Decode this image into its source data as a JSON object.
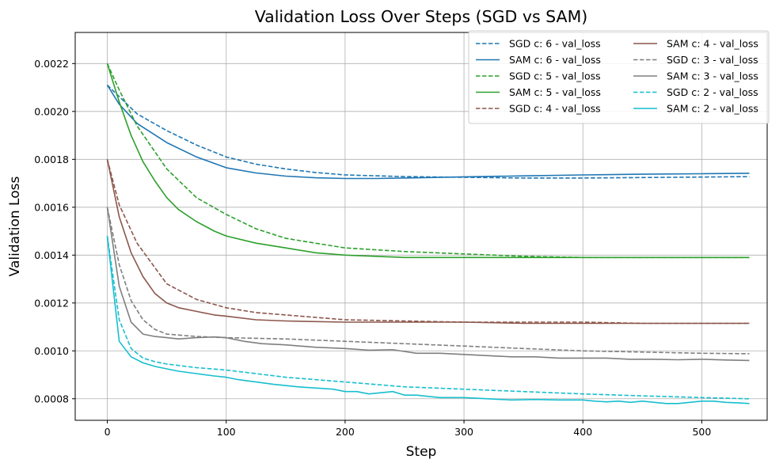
{
  "chart_data": {
    "type": "line",
    "title": "Validation Loss Over Steps (SGD vs SAM)",
    "xlabel": "Step",
    "ylabel": "Validation Loss",
    "xlim": [
      -27,
      555
    ],
    "ylim": [
      0.00071,
      0.00233
    ],
    "xticks": [
      0,
      100,
      200,
      300,
      400,
      500
    ],
    "yticks": [
      0.0008,
      0.001,
      0.0012,
      0.0014,
      0.0016,
      0.0018,
      0.002,
      0.0022
    ],
    "xtick_labels": [
      "0",
      "100",
      "200",
      "300",
      "400",
      "500"
    ],
    "ytick_labels": [
      "0.0008",
      "0.0010",
      "0.0012",
      "0.0014",
      "0.0016",
      "0.0018",
      "0.0020",
      "0.0022"
    ],
    "grid": true,
    "legend_position": "top-right",
    "legend_columns": 2,
    "series": [
      {
        "name": "SGD c: 6 - val_loss",
        "color": "#1f77b4",
        "style": "dashed",
        "x": [
          0,
          25,
          50,
          75,
          100,
          125,
          150,
          175,
          200,
          250,
          300,
          350,
          400,
          450,
          500,
          540
        ],
        "y": [
          0.00211,
          0.00199,
          0.00192,
          0.00186,
          0.00181,
          0.00178,
          0.00176,
          0.001745,
          0.001735,
          0.001728,
          0.001725,
          0.001722,
          0.001722,
          0.001724,
          0.001726,
          0.001728
        ]
      },
      {
        "name": "SAM c: 6 - val_loss",
        "color": "#1f77b4",
        "style": "solid",
        "x": [
          0,
          10,
          25,
          50,
          75,
          100,
          125,
          150,
          175,
          200,
          225,
          250,
          300,
          350,
          400,
          450,
          500,
          540
        ],
        "y": [
          0.00211,
          0.00203,
          0.00195,
          0.00187,
          0.00181,
          0.001765,
          0.001743,
          0.00173,
          0.001723,
          0.00172,
          0.00172,
          0.001722,
          0.001727,
          0.001731,
          0.001735,
          0.001738,
          0.00174,
          0.001742
        ]
      },
      {
        "name": "SGD c: 5 - val_loss",
        "color": "#2ca02c",
        "style": "dashed",
        "x": [
          0,
          10,
          25,
          50,
          75,
          100,
          125,
          150,
          175,
          200,
          250,
          300,
          350,
          400,
          450,
          500,
          540
        ],
        "y": [
          0.0022,
          0.00209,
          0.00194,
          0.00176,
          0.00164,
          0.00157,
          0.00151,
          0.00147,
          0.00145,
          0.00143,
          0.001415,
          0.001405,
          0.001395,
          0.00139,
          0.00139,
          0.00139,
          0.00139
        ]
      },
      {
        "name": "SAM c: 5 - val_loss",
        "color": "#2ca02c",
        "style": "solid",
        "x": [
          0,
          10,
          20,
          30,
          40,
          50,
          60,
          75,
          90,
          100,
          125,
          150,
          175,
          200,
          250,
          300,
          350,
          400,
          450,
          500,
          540
        ],
        "y": [
          0.0022,
          0.00204,
          0.0019,
          0.00179,
          0.00171,
          0.00164,
          0.00159,
          0.00154,
          0.0015,
          0.00148,
          0.00145,
          0.00143,
          0.00141,
          0.0014,
          0.00139,
          0.00139,
          0.00139,
          0.00139,
          0.00139,
          0.00139,
          0.00139
        ]
      },
      {
        "name": "SGD c: 4 - val_loss",
        "color": "#8c564b",
        "style": "dashed",
        "x": [
          0,
          10,
          25,
          50,
          75,
          100,
          125,
          150,
          200,
          250,
          300,
          350,
          400,
          450,
          500,
          540
        ],
        "y": [
          0.0018,
          0.00161,
          0.00145,
          0.00128,
          0.001215,
          0.00118,
          0.00116,
          0.00115,
          0.00113,
          0.001125,
          0.00112,
          0.00112,
          0.00112,
          0.001115,
          0.001115,
          0.001115
        ]
      },
      {
        "name": "SAM c: 4 - val_loss",
        "color": "#8c564b",
        "style": "solid",
        "x": [
          0,
          10,
          20,
          30,
          40,
          50,
          60,
          75,
          90,
          100,
          125,
          150,
          200,
          250,
          300,
          350,
          400,
          450,
          500,
          540
        ],
        "y": [
          0.0018,
          0.00156,
          0.00141,
          0.00131,
          0.00124,
          0.0012,
          0.00118,
          0.001165,
          0.00115,
          0.001145,
          0.00113,
          0.001125,
          0.00112,
          0.00112,
          0.00112,
          0.001115,
          0.001115,
          0.001115,
          0.001115,
          0.001115
        ]
      },
      {
        "name": "SGD c: 3 - val_loss",
        "color": "#7f7f7f",
        "style": "dashed",
        "x": [
          0,
          10,
          20,
          30,
          40,
          50,
          75,
          100,
          150,
          200,
          250,
          300,
          350,
          400,
          450,
          500,
          540
        ],
        "y": [
          0.0016,
          0.00136,
          0.00121,
          0.00113,
          0.00109,
          0.00107,
          0.00106,
          0.001055,
          0.00105,
          0.00104,
          0.00103,
          0.00102,
          0.00101,
          0.001,
          0.000995,
          0.00099,
          0.000988
        ]
      },
      {
        "name": "SAM c: 3 - val_loss",
        "color": "#7f7f7f",
        "style": "solid",
        "x": [
          0,
          10,
          20,
          30,
          40,
          50,
          60,
          75,
          90,
          100,
          115,
          130,
          150,
          175,
          200,
          220,
          240,
          260,
          280,
          300,
          320,
          340,
          360,
          380,
          400,
          420,
          440,
          460,
          480,
          500,
          520,
          540
        ],
        "y": [
          0.0016,
          0.00127,
          0.00112,
          0.00107,
          0.00106,
          0.001055,
          0.00105,
          0.001055,
          0.001058,
          0.001055,
          0.00104,
          0.00103,
          0.001025,
          0.001015,
          0.00101,
          0.001003,
          0.001005,
          0.00099,
          0.00099,
          0.000985,
          0.00098,
          0.000975,
          0.000975,
          0.00097,
          0.00097,
          0.00097,
          0.000965,
          0.000965,
          0.000963,
          0.000965,
          0.000962,
          0.00096
        ]
      },
      {
        "name": "SGD c: 2 - val_loss",
        "color": "#17becf",
        "style": "dashed",
        "x": [
          0,
          10,
          20,
          30,
          40,
          50,
          75,
          100,
          125,
          150,
          200,
          250,
          300,
          350,
          400,
          450,
          500,
          540
        ],
        "y": [
          0.00148,
          0.00113,
          0.00101,
          0.00097,
          0.000955,
          0.000945,
          0.00093,
          0.00092,
          0.000905,
          0.00089,
          0.00087,
          0.00085,
          0.00084,
          0.00083,
          0.00082,
          0.000812,
          0.000805,
          0.0008
        ]
      },
      {
        "name": "SAM c: 2 - val_loss",
        "color": "#17becf",
        "style": "solid",
        "x": [
          0,
          10,
          20,
          30,
          40,
          50,
          60,
          75,
          90,
          100,
          110,
          125,
          140,
          150,
          160,
          175,
          190,
          200,
          210,
          220,
          230,
          240,
          250,
          260,
          270,
          280,
          290,
          300,
          320,
          340,
          360,
          380,
          400,
          410,
          420,
          430,
          440,
          450,
          460,
          470,
          480,
          490,
          500,
          510,
          520,
          530,
          540
        ],
        "y": [
          0.00148,
          0.00104,
          0.000975,
          0.00095,
          0.000935,
          0.000925,
          0.000915,
          0.000905,
          0.000895,
          0.00089,
          0.00088,
          0.00087,
          0.00086,
          0.000855,
          0.00085,
          0.000845,
          0.00084,
          0.00083,
          0.00083,
          0.00082,
          0.000825,
          0.00083,
          0.000815,
          0.000815,
          0.00081,
          0.000805,
          0.000805,
          0.000805,
          0.0008,
          0.000795,
          0.000797,
          0.000795,
          0.000795,
          0.00079,
          0.000787,
          0.00079,
          0.000785,
          0.00079,
          0.000785,
          0.00078,
          0.00078,
          0.000785,
          0.00079,
          0.00079,
          0.000785,
          0.000783,
          0.00078
        ]
      }
    ]
  }
}
